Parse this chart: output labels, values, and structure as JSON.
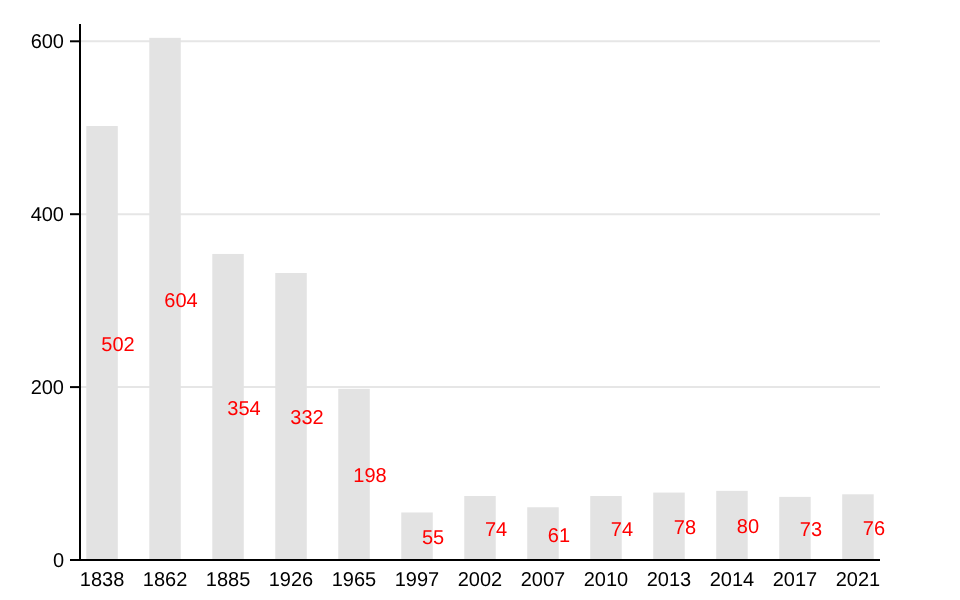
{
  "chart_data": {
    "type": "bar",
    "categories": [
      "1838",
      "1862",
      "1885",
      "1926",
      "1965",
      "1997",
      "2002",
      "2007",
      "2010",
      "2013",
      "2014",
      "2017",
      "2021"
    ],
    "values": [
      502,
      604,
      354,
      332,
      198,
      55,
      74,
      61,
      74,
      78,
      80,
      73,
      76
    ],
    "color": "#e3e3e3",
    "ylim": [
      0,
      620
    ],
    "yticks": [
      0,
      200,
      400,
      600
    ],
    "grid": "y",
    "data_labels": true
  }
}
